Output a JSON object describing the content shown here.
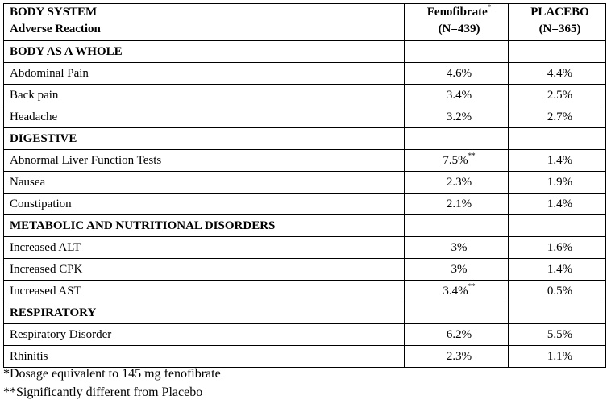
{
  "header": {
    "col1_line1": "BODY SYSTEM",
    "col1_line2": "Adverse Reaction",
    "col2_line1": "Fenofibrate",
    "col2_line1_sup": "*",
    "col2_line2": "(N=439)",
    "col3_line1": "PLACEBO",
    "col3_line2": "(N=365)"
  },
  "rows": [
    {
      "type": "section",
      "label": "BODY AS A WHOLE"
    },
    {
      "type": "item",
      "label": "Abdominal Pain",
      "fenofibrate": "4.6%",
      "fenofibrate_sup": "",
      "placebo": "4.4%"
    },
    {
      "type": "item",
      "label": "Back pain",
      "fenofibrate": "3.4%",
      "fenofibrate_sup": "",
      "placebo": "2.5%"
    },
    {
      "type": "item",
      "label": "Headache",
      "fenofibrate": "3.2%",
      "fenofibrate_sup": "",
      "placebo": "2.7%"
    },
    {
      "type": "section",
      "label": "DIGESTIVE"
    },
    {
      "type": "item",
      "label": "Abnormal Liver Function Tests",
      "fenofibrate": "7.5%",
      "fenofibrate_sup": "**",
      "placebo": "1.4%"
    },
    {
      "type": "item",
      "label": "Nausea",
      "fenofibrate": "2.3%",
      "fenofibrate_sup": "",
      "placebo": "1.9%"
    },
    {
      "type": "item",
      "label": "Constipation",
      "fenofibrate": "2.1%",
      "fenofibrate_sup": "",
      "placebo": "1.4%"
    },
    {
      "type": "section",
      "label": "METABOLIC AND NUTRITIONAL DISORDERS"
    },
    {
      "type": "item",
      "label": "Increased ALT",
      "fenofibrate": "3%",
      "fenofibrate_sup": "",
      "placebo": "1.6%"
    },
    {
      "type": "item",
      "label": "Increased CPK",
      "fenofibrate": "3%",
      "fenofibrate_sup": "",
      "placebo": "1.4%"
    },
    {
      "type": "item",
      "label": "Increased AST",
      "fenofibrate": "3.4%",
      "fenofibrate_sup": "**",
      "placebo": "0.5%"
    },
    {
      "type": "section",
      "label": "RESPIRATORY"
    },
    {
      "type": "item",
      "label": "Respiratory Disorder",
      "fenofibrate": "6.2%",
      "fenofibrate_sup": "",
      "placebo": "5.5%"
    },
    {
      "type": "item",
      "label": "Rhinitis",
      "fenofibrate": "2.3%",
      "fenofibrate_sup": "",
      "placebo": "1.1%"
    }
  ],
  "footnotes": [
    "*Dosage equivalent to 145 mg fenofibrate",
    "**Significantly different from Placebo"
  ]
}
